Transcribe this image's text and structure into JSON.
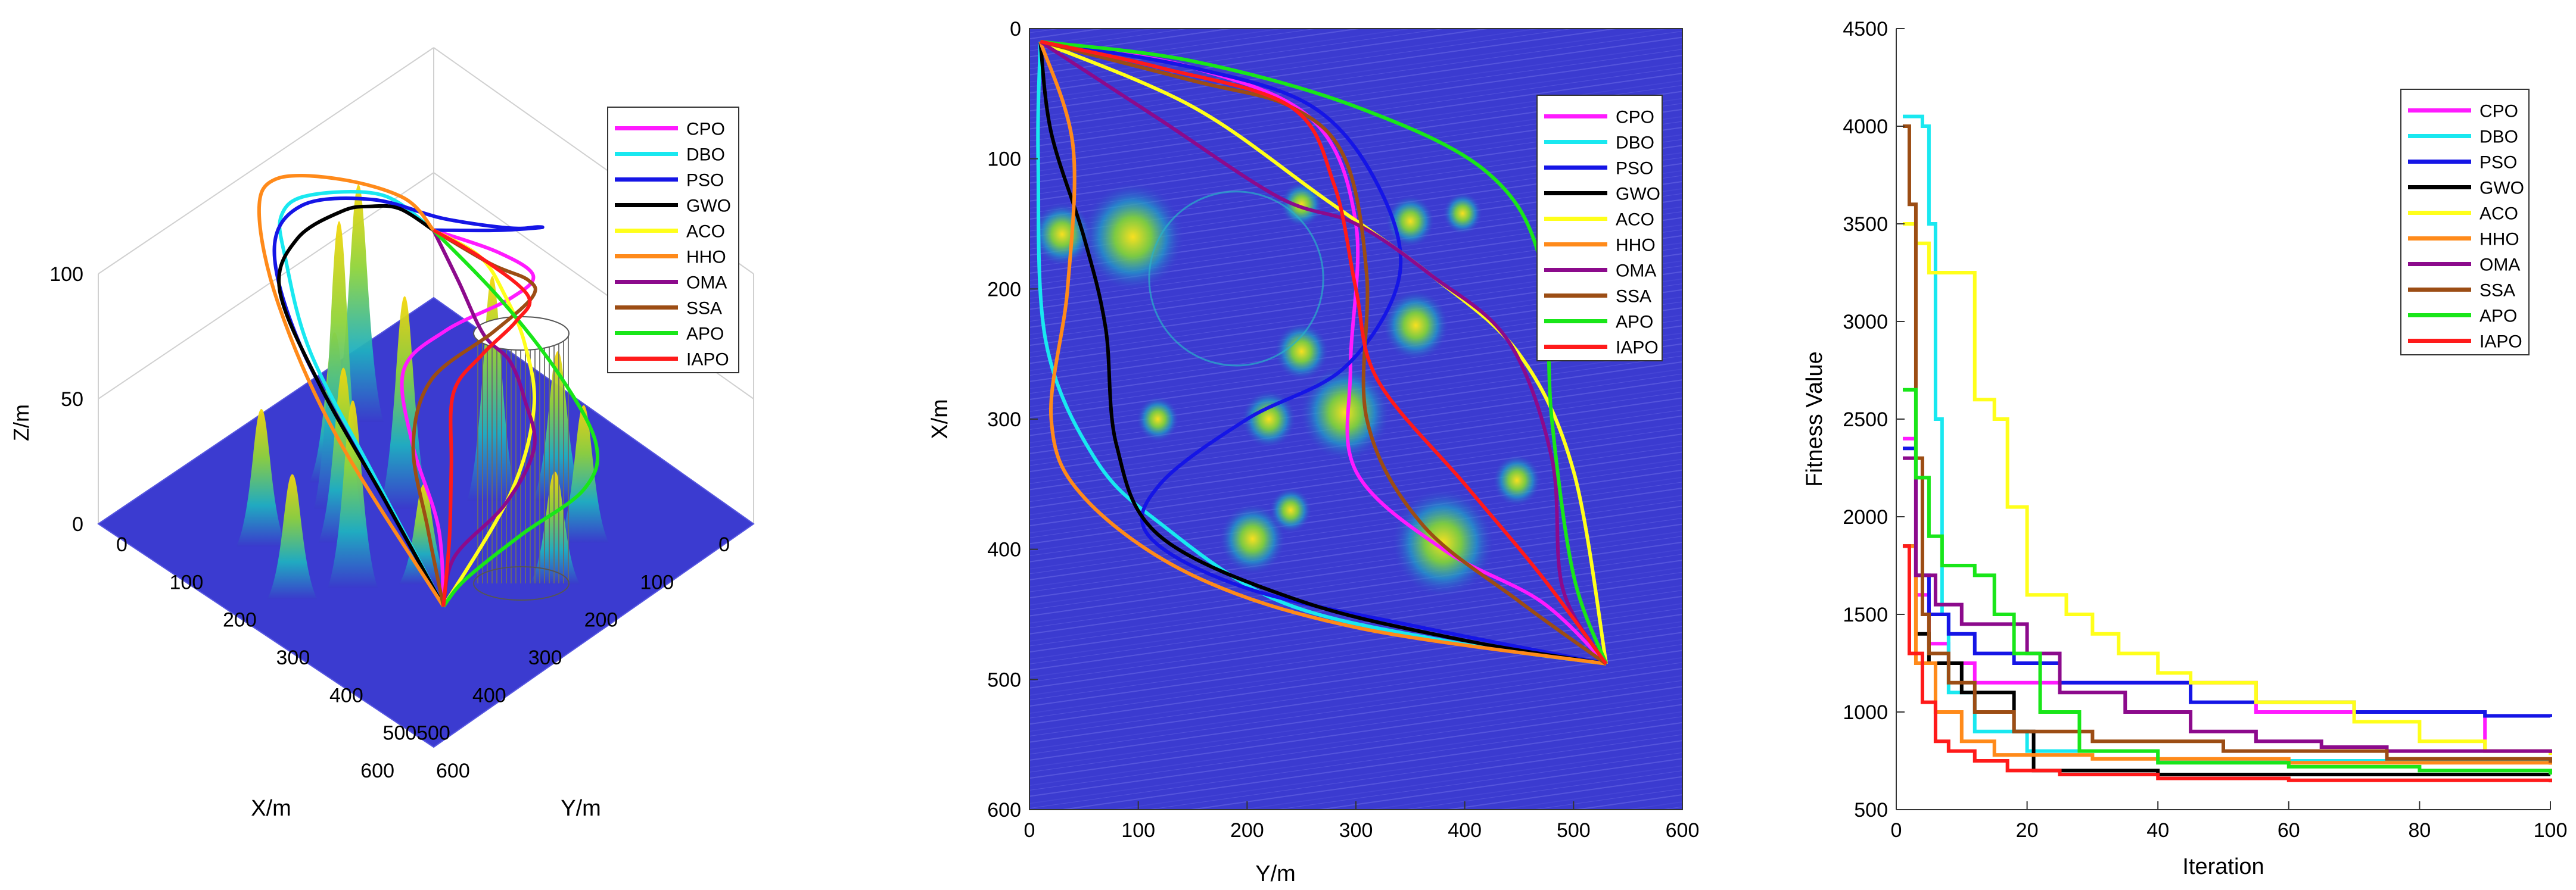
{
  "colors": {
    "CPO": "#ff1aff",
    "DBO": "#19e8f0",
    "PSO": "#1515e6",
    "GWO": "#000000",
    "ACO": "#ffff1a",
    "HHO": "#ff8a1a",
    "OMA": "#8c0a8c",
    "SSA": "#9c4d14",
    "APO": "#19e619",
    "IAPO": "#ff1a1a",
    "terrain_base": "#3a3acc",
    "terrain_peak": "#f5d60a"
  },
  "chart_data": [
    {
      "type": "surface-3d",
      "xlabel": "X/m",
      "ylabel": "Y/m",
      "zlabel": "Z/m",
      "xlim": [
        0,
        600
      ],
      "ylim": [
        0,
        600
      ],
      "zlim": [
        0,
        100
      ],
      "xticks": [
        "0",
        "100",
        "200",
        "300",
        "400",
        "500",
        "600"
      ],
      "yticks": [
        "0",
        "100",
        "200",
        "300",
        "400",
        "500",
        "600"
      ],
      "zticks": [
        "0",
        "50",
        "100"
      ],
      "legend": [
        "CPO",
        "DBO",
        "PSO",
        "GWO",
        "ACO",
        "HHO",
        "OMA",
        "SSA",
        "APO",
        "IAPO"
      ],
      "legend_position": "top-right"
    },
    {
      "type": "line",
      "xlabel": "Y/m",
      "ylabel": "X/m",
      "xlim": [
        0,
        600
      ],
      "ylim": [
        0,
        600
      ],
      "xticks": [
        "0",
        "100",
        "200",
        "300",
        "400",
        "500",
        "600"
      ],
      "yticks": [
        "0",
        "100",
        "200",
        "300",
        "400",
        "500",
        "600"
      ],
      "y_reversed": true,
      "start": [
        10,
        10
      ],
      "end": [
        530,
        488
      ],
      "legend_position": "top-right",
      "series": [
        {
          "name": "CPO",
          "points": [
            [
              10,
              10
            ],
            [
              150,
              30
            ],
            [
              260,
              70
            ],
            [
              300,
              150
            ],
            [
              295,
              260
            ],
            [
              300,
              340
            ],
            [
              380,
              400
            ],
            [
              470,
              440
            ],
            [
              530,
              488
            ]
          ]
        },
        {
          "name": "DBO",
          "points": [
            [
              10,
              10
            ],
            [
              8,
              100
            ],
            [
              15,
              240
            ],
            [
              60,
              330
            ],
            [
              120,
              380
            ],
            [
              230,
              440
            ],
            [
              380,
              470
            ],
            [
              530,
              488
            ]
          ]
        },
        {
          "name": "PSO",
          "points": [
            [
              10,
              10
            ],
            [
              150,
              30
            ],
            [
              260,
              60
            ],
            [
              320,
              120
            ],
            [
              340,
              190
            ],
            [
              290,
              260
            ],
            [
              200,
              300
            ],
            [
              120,
              350
            ],
            [
              110,
              390
            ],
            [
              200,
              430
            ],
            [
              360,
              460
            ],
            [
              530,
              488
            ]
          ]
        },
        {
          "name": "GWO",
          "points": [
            [
              10,
              10
            ],
            [
              20,
              80
            ],
            [
              50,
              160
            ],
            [
              70,
              230
            ],
            [
              80,
              320
            ],
            [
              120,
              390
            ],
            [
              250,
              440
            ],
            [
              400,
              470
            ],
            [
              530,
              488
            ]
          ]
        },
        {
          "name": "ACO",
          "points": [
            [
              10,
              10
            ],
            [
              150,
              60
            ],
            [
              270,
              130
            ],
            [
              370,
              190
            ],
            [
              450,
              250
            ],
            [
              500,
              340
            ],
            [
              530,
              488
            ]
          ]
        },
        {
          "name": "HHO",
          "points": [
            [
              10,
              10
            ],
            [
              40,
              90
            ],
            [
              35,
              200
            ],
            [
              20,
              300
            ],
            [
              50,
              360
            ],
            [
              150,
              420
            ],
            [
              300,
              460
            ],
            [
              530,
              488
            ]
          ]
        },
        {
          "name": "OMA",
          "points": [
            [
              10,
              10
            ],
            [
              120,
              70
            ],
            [
              230,
              130
            ],
            [
              300,
              150
            ],
            [
              370,
              190
            ],
            [
              440,
              240
            ],
            [
              480,
              330
            ],
            [
              490,
              430
            ],
            [
              530,
              488
            ]
          ]
        },
        {
          "name": "SSA",
          "points": [
            [
              10,
              10
            ],
            [
              150,
              40
            ],
            [
              240,
              60
            ],
            [
              290,
              100
            ],
            [
              310,
              190
            ],
            [
              310,
              300
            ],
            [
              360,
              380
            ],
            [
              450,
              440
            ],
            [
              530,
              488
            ]
          ]
        },
        {
          "name": "APO",
          "points": [
            [
              10,
              10
            ],
            [
              150,
              25
            ],
            [
              300,
              60
            ],
            [
              420,
              110
            ],
            [
              470,
              180
            ],
            [
              480,
              300
            ],
            [
              500,
              420
            ],
            [
              530,
              488
            ]
          ]
        },
        {
          "name": "IAPO",
          "points": [
            [
              10,
              10
            ],
            [
              120,
              30
            ],
            [
              240,
              60
            ],
            [
              280,
              120
            ],
            [
              300,
              200
            ],
            [
              320,
              270
            ],
            [
              400,
              350
            ],
            [
              470,
              420
            ],
            [
              530,
              488
            ]
          ]
        }
      ],
      "peaks": [
        {
          "x": 95,
          "y": 160,
          "r": 34
        },
        {
          "x": 30,
          "y": 158,
          "r": 20
        },
        {
          "x": 250,
          "y": 135,
          "r": 14
        },
        {
          "x": 350,
          "y": 148,
          "r": 16
        },
        {
          "x": 398,
          "y": 142,
          "r": 13
        },
        {
          "x": 355,
          "y": 228,
          "r": 22
        },
        {
          "x": 250,
          "y": 248,
          "r": 18
        },
        {
          "x": 290,
          "y": 295,
          "r": 30
        },
        {
          "x": 220,
          "y": 300,
          "r": 18
        },
        {
          "x": 118,
          "y": 300,
          "r": 14
        },
        {
          "x": 448,
          "y": 347,
          "r": 16
        },
        {
          "x": 380,
          "y": 395,
          "r": 34
        },
        {
          "x": 205,
          "y": 392,
          "r": 22
        },
        {
          "x": 240,
          "y": 370,
          "r": 14
        }
      ],
      "no_fly_circle": {
        "x": 190,
        "y": 192,
        "r": 80
      }
    },
    {
      "type": "line",
      "xlabel": "Iteration",
      "ylabel": "Fitness Value",
      "xlim": [
        0,
        100
      ],
      "ylim": [
        500,
        4500
      ],
      "xticks": [
        "0",
        "20",
        "40",
        "60",
        "80",
        "100"
      ],
      "yticks": [
        "500",
        "1000",
        "1500",
        "2000",
        "2500",
        "3000",
        "3500",
        "4000",
        "4500"
      ],
      "legend_position": "top-right",
      "series": [
        {
          "name": "CPO",
          "steps": [
            [
              1,
              2400
            ],
            [
              3,
              1600
            ],
            [
              5,
              1350
            ],
            [
              8,
              1250
            ],
            [
              12,
              1150
            ],
            [
              30,
              1150
            ],
            [
              55,
              1000
            ],
            [
              90,
              800
            ],
            [
              100,
              780
            ]
          ]
        },
        {
          "name": "DBO",
          "steps": [
            [
              1,
              4050
            ],
            [
              4,
              4000
            ],
            [
              5,
              3500
            ],
            [
              6,
              2500
            ],
            [
              7,
              1500
            ],
            [
              8,
              1100
            ],
            [
              12,
              900
            ],
            [
              20,
              800
            ],
            [
              40,
              750
            ],
            [
              100,
              740
            ]
          ]
        },
        {
          "name": "PSO",
          "steps": [
            [
              1,
              2350
            ],
            [
              3,
              1700
            ],
            [
              5,
              1500
            ],
            [
              8,
              1400
            ],
            [
              12,
              1300
            ],
            [
              18,
              1250
            ],
            [
              25,
              1150
            ],
            [
              45,
              1050
            ],
            [
              70,
              1000
            ],
            [
              90,
              980
            ],
            [
              100,
              975
            ]
          ]
        },
        {
          "name": "GWO",
          "steps": [
            [
              1,
              1850
            ],
            [
              3,
              1400
            ],
            [
              5,
              1250
            ],
            [
              10,
              1100
            ],
            [
              18,
              900
            ],
            [
              21,
              700
            ],
            [
              40,
              680
            ],
            [
              100,
              680
            ]
          ]
        },
        {
          "name": "ACO",
          "steps": [
            [
              1,
              3500
            ],
            [
              3,
              3400
            ],
            [
              5,
              3250
            ],
            [
              10,
              3250
            ],
            [
              12,
              2600
            ],
            [
              15,
              2500
            ],
            [
              17,
              2050
            ],
            [
              20,
              1600
            ],
            [
              26,
              1500
            ],
            [
              30,
              1400
            ],
            [
              34,
              1300
            ],
            [
              40,
              1200
            ],
            [
              45,
              1150
            ],
            [
              55,
              1050
            ],
            [
              70,
              950
            ],
            [
              80,
              850
            ],
            [
              90,
              800
            ],
            [
              100,
              780
            ]
          ]
        },
        {
          "name": "HHO",
          "steps": [
            [
              1,
              1850
            ],
            [
              3,
              1250
            ],
            [
              6,
              1000
            ],
            [
              10,
              850
            ],
            [
              15,
              780
            ],
            [
              30,
              760
            ],
            [
              60,
              740
            ],
            [
              100,
              730
            ]
          ]
        },
        {
          "name": "OMA",
          "steps": [
            [
              1,
              2300
            ],
            [
              3,
              1700
            ],
            [
              6,
              1550
            ],
            [
              10,
              1450
            ],
            [
              20,
              1300
            ],
            [
              25,
              1100
            ],
            [
              35,
              1000
            ],
            [
              45,
              900
            ],
            [
              55,
              850
            ],
            [
              65,
              820
            ],
            [
              75,
              800
            ],
            [
              100,
              790
            ]
          ]
        },
        {
          "name": "SSA",
          "steps": [
            [
              1,
              4000
            ],
            [
              2,
              3600
            ],
            [
              3,
              2300
            ],
            [
              4,
              1500
            ],
            [
              5,
              1300
            ],
            [
              8,
              1150
            ],
            [
              12,
              1000
            ],
            [
              18,
              900
            ],
            [
              30,
              850
            ],
            [
              50,
              800
            ],
            [
              75,
              760
            ],
            [
              100,
              740
            ]
          ]
        },
        {
          "name": "APO",
          "steps": [
            [
              1,
              2650
            ],
            [
              3,
              2200
            ],
            [
              5,
              1900
            ],
            [
              7,
              1750
            ],
            [
              12,
              1700
            ],
            [
              15,
              1500
            ],
            [
              18,
              1300
            ],
            [
              22,
              1000
            ],
            [
              28,
              800
            ],
            [
              40,
              740
            ],
            [
              60,
              720
            ],
            [
              80,
              700
            ],
            [
              100,
              680
            ]
          ]
        },
        {
          "name": "IAPO",
          "steps": [
            [
              1,
              1850
            ],
            [
              2,
              1300
            ],
            [
              4,
              1050
            ],
            [
              6,
              850
            ],
            [
              8,
              800
            ],
            [
              12,
              750
            ],
            [
              17,
              700
            ],
            [
              25,
              680
            ],
            [
              40,
              660
            ],
            [
              60,
              650
            ],
            [
              100,
              640
            ]
          ]
        }
      ]
    }
  ]
}
